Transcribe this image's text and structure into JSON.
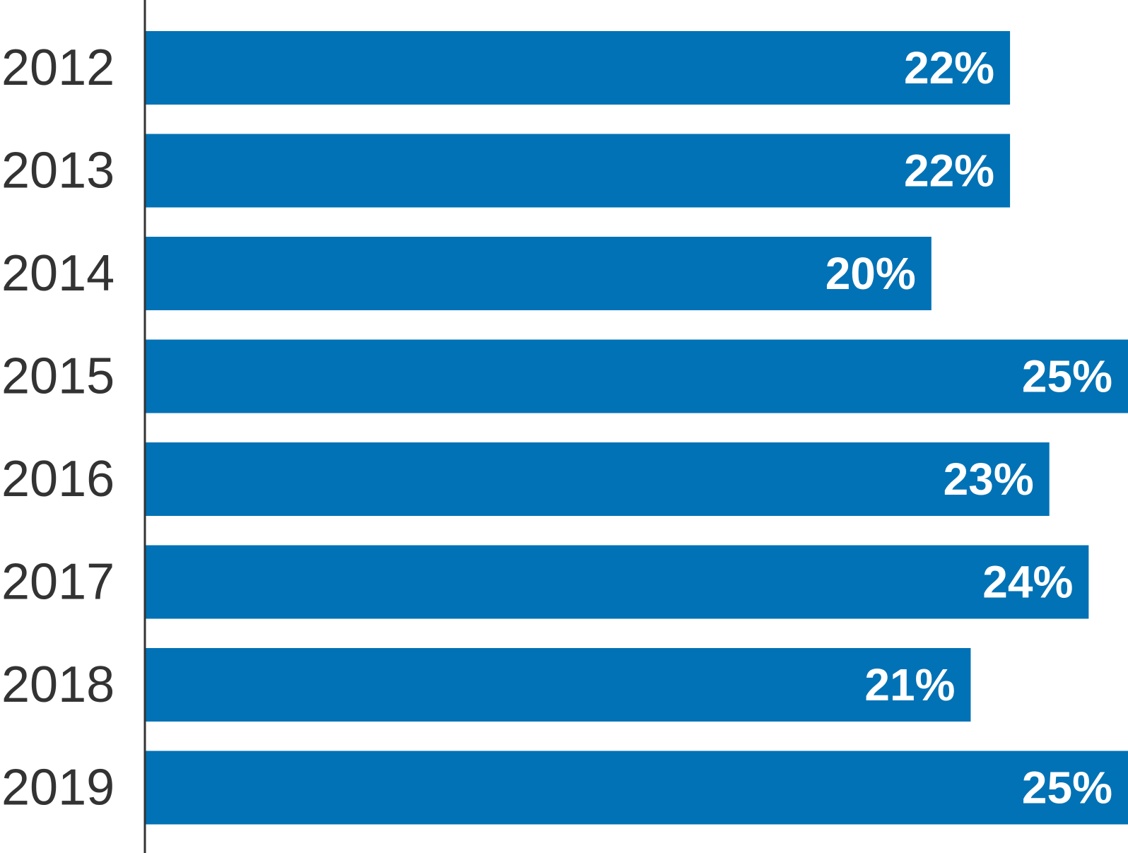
{
  "chart_data": {
    "type": "bar",
    "orientation": "horizontal",
    "categories": [
      "2012",
      "2013",
      "2014",
      "2015",
      "2016",
      "2017",
      "2018",
      "2019"
    ],
    "values": [
      22,
      22,
      20,
      25,
      23,
      24,
      21,
      25
    ],
    "value_labels": [
      "22%",
      "22%",
      "20%",
      "25%",
      "23%",
      "24%",
      "21%",
      "25%"
    ],
    "title": "",
    "xlabel": "",
    "ylabel": "",
    "xlim": [
      0,
      25
    ],
    "grid": false,
    "legend": "none",
    "bar_color": "#0072B5",
    "axis_color": "#333333",
    "label_color": "#333333",
    "value_label_color": "#ffffff"
  }
}
